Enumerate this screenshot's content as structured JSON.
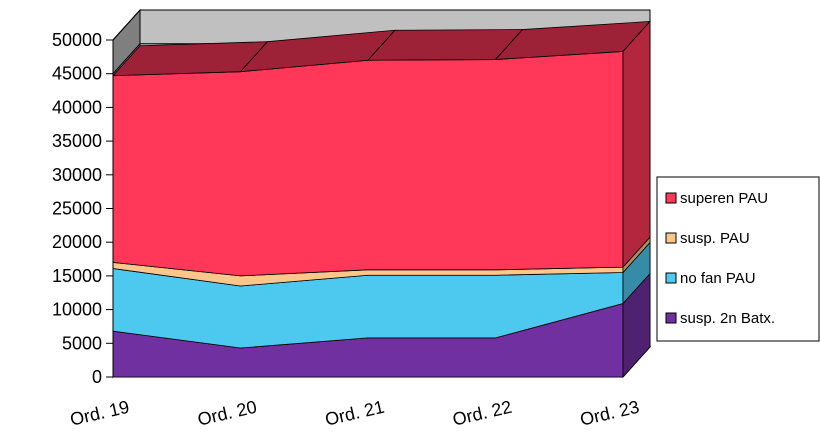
{
  "chart_data": {
    "type": "area",
    "stacked": true,
    "three_d": true,
    "categories": [
      "Ord. 19",
      "Ord. 20",
      "Ord. 21",
      "Ord. 22",
      "Ord. 23"
    ],
    "series": [
      {
        "name": "susp. 2n Batx.",
        "color": "#7030a0",
        "values": [
          6800,
          4300,
          5800,
          5800,
          10900
        ]
      },
      {
        "name": "no fan PAU",
        "color": "#4dc8ee",
        "values": [
          9300,
          9200,
          9300,
          9300,
          4600
        ]
      },
      {
        "name": "susp. PAU",
        "color": "#ffc68c",
        "values": [
          900,
          1500,
          800,
          800,
          800
        ]
      },
      {
        "name": "superen PAU",
        "color": "#ff3758",
        "values": [
          27700,
          30300,
          31100,
          31200,
          32000
        ]
      }
    ],
    "ylim": [
      0,
      50000
    ],
    "yticks": [
      0,
      5000,
      10000,
      15000,
      20000,
      25000,
      30000,
      35000,
      40000,
      45000,
      50000
    ],
    "grid": true,
    "legend_position": "right"
  }
}
